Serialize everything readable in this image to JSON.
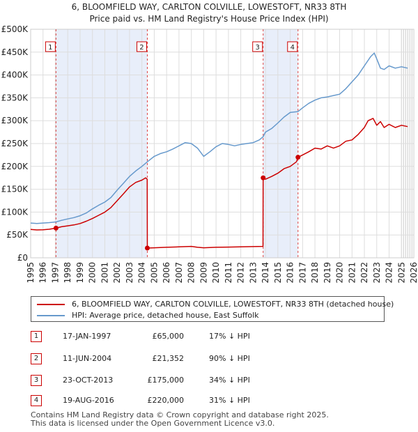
{
  "chart_data": {
    "type": "line",
    "title": "6, BLOOMFIELD WAY, CARLTON COLVILLE, LOWESTOFT, NR33 8TH",
    "subtitle": "Price paid vs. HM Land Registry's House Price Index (HPI)",
    "xlim": [
      1995,
      2026
    ],
    "ylim": [
      0,
      500000
    ],
    "x_ticks": [
      "1995",
      "1996",
      "1997",
      "1998",
      "1999",
      "2000",
      "2001",
      "2002",
      "2003",
      "2004",
      "2005",
      "2006",
      "2007",
      "2008",
      "2009",
      "2010",
      "2011",
      "2012",
      "2013",
      "2014",
      "2015",
      "2016",
      "2017",
      "2018",
      "2019",
      "2020",
      "2021",
      "2022",
      "2023",
      "2024",
      "2025",
      "2026"
    ],
    "y_ticks": [
      {
        "value": 0,
        "label": "£0"
      },
      {
        "value": 50000,
        "label": "£50K"
      },
      {
        "value": 100000,
        "label": "£100K"
      },
      {
        "value": 150000,
        "label": "£150K"
      },
      {
        "value": 200000,
        "label": "£200K"
      },
      {
        "value": 250000,
        "label": "£250K"
      },
      {
        "value": 300000,
        "label": "£300K"
      },
      {
        "value": 350000,
        "label": "£350K"
      },
      {
        "value": 400000,
        "label": "£400K"
      },
      {
        "value": 450000,
        "label": "£450K"
      },
      {
        "value": 500000,
        "label": "£500K"
      }
    ],
    "shaded_ranges": [
      [
        1997.05,
        2004.44
      ],
      [
        2013.81,
        2016.63
      ]
    ],
    "forecast_from": 2025.0,
    "series": [
      {
        "name": "6, BLOOMFIELD WAY, CARLTON COLVILLE, LOWESTOFT, NR33 8TH (detached house)",
        "color": "#cc0000",
        "x": [
          1995.0,
          1995.5,
          1996.0,
          1996.5,
          1997.05,
          1997.5,
          1998.0,
          1998.5,
          1999.0,
          1999.5,
          2000.0,
          2000.5,
          2001.0,
          2001.5,
          2002.0,
          2002.5,
          2003.0,
          2003.5,
          2004.0,
          2004.3,
          2004.43,
          2004.44,
          2005.0,
          2006.0,
          2007.0,
          2008.0,
          2008.5,
          2009.0,
          2010.0,
          2011.0,
          2012.0,
          2013.0,
          2013.8,
          2013.81,
          2014.0,
          2014.5,
          2015.0,
          2015.5,
          2016.0,
          2016.5,
          2016.63,
          2017.0,
          2017.5,
          2018.0,
          2018.5,
          2019.0,
          2019.5,
          2020.0,
          2020.5,
          2021.0,
          2021.5,
          2022.0,
          2022.3,
          2022.7,
          2023.0,
          2023.3,
          2023.6,
          2024.0,
          2024.5,
          2025.0,
          2025.5
        ],
        "y": [
          62000,
          61000,
          61500,
          62500,
          65000,
          68000,
          70000,
          72000,
          75000,
          80000,
          86000,
          93000,
          100000,
          110000,
          125000,
          140000,
          155000,
          165000,
          170000,
          175000,
          172000,
          21352,
          22000,
          23000,
          24000,
          25000,
          23000,
          22000,
          23000,
          23500,
          24000,
          24500,
          25000,
          175000,
          172000,
          178000,
          185000,
          195000,
          200000,
          210000,
          220000,
          225000,
          232000,
          240000,
          238000,
          245000,
          240000,
          245000,
          255000,
          258000,
          270000,
          285000,
          300000,
          305000,
          290000,
          298000,
          285000,
          292000,
          285000,
          290000,
          287000
        ]
      },
      {
        "name": "HPI: Average price, detached house, East Suffolk",
        "color": "#6699cc",
        "x": [
          1995.0,
          1995.5,
          1996.0,
          1996.5,
          1997.05,
          1997.5,
          1998.0,
          1998.5,
          1999.0,
          1999.5,
          2000.0,
          2000.5,
          2001.0,
          2001.5,
          2002.0,
          2002.5,
          2003.0,
          2003.5,
          2004.0,
          2004.44,
          2005.0,
          2005.5,
          2006.0,
          2006.5,
          2007.0,
          2007.5,
          2008.0,
          2008.5,
          2009.0,
          2009.5,
          2010.0,
          2010.5,
          2011.0,
          2011.5,
          2012.0,
          2012.5,
          2013.0,
          2013.5,
          2013.81,
          2014.0,
          2014.5,
          2015.0,
          2015.5,
          2016.0,
          2016.63,
          2017.0,
          2017.5,
          2018.0,
          2018.5,
          2019.0,
          2019.5,
          2020.0,
          2020.5,
          2021.0,
          2021.5,
          2022.0,
          2022.5,
          2022.8,
          2023.0,
          2023.3,
          2023.6,
          2024.0,
          2024.5,
          2025.0,
          2025.5
        ],
        "y": [
          76000,
          75000,
          76000,
          77000,
          78500,
          82000,
          85000,
          88000,
          92000,
          98000,
          107000,
          115000,
          122000,
          132000,
          148000,
          163000,
          178000,
          190000,
          200000,
          210000,
          222000,
          228000,
          232000,
          238000,
          245000,
          252000,
          250000,
          240000,
          222000,
          232000,
          243000,
          250000,
          248000,
          245000,
          248000,
          250000,
          252000,
          258000,
          265000,
          275000,
          283000,
          295000,
          308000,
          318000,
          320000,
          328000,
          338000,
          345000,
          350000,
          352000,
          355000,
          358000,
          370000,
          385000,
          400000,
          420000,
          440000,
          448000,
          435000,
          415000,
          412000,
          420000,
          415000,
          418000,
          415000
        ]
      }
    ],
    "markers": [
      {
        "n": "1",
        "x": 1997.05,
        "y": 65000
      },
      {
        "n": "2",
        "x": 2004.44,
        "y": 21352
      },
      {
        "n": "3",
        "x": 2013.81,
        "y": 175000
      },
      {
        "n": "4",
        "x": 2016.63,
        "y": 220000
      }
    ]
  },
  "legend": {
    "items": [
      {
        "label": "6, BLOOMFIELD WAY, CARLTON COLVILLE, LOWESTOFT, NR33 8TH (detached house)",
        "color": "#cc0000"
      },
      {
        "label": "HPI: Average price, detached house, East Suffolk",
        "color": "#6699cc"
      }
    ]
  },
  "sales": [
    {
      "n": "1",
      "date": "17-JAN-1997",
      "price": "£65,000",
      "hpi": "17% ↓ HPI"
    },
    {
      "n": "2",
      "date": "11-JUN-2004",
      "price": "£21,352",
      "hpi": "90% ↓ HPI"
    },
    {
      "n": "3",
      "date": "23-OCT-2013",
      "price": "£175,000",
      "hpi": "34% ↓ HPI"
    },
    {
      "n": "4",
      "date": "19-AUG-2016",
      "price": "£220,000",
      "hpi": "31% ↓ HPI"
    }
  ],
  "footer": {
    "line1": "Contains HM Land Registry data © Crown copyright and database right 2025.",
    "line2": "This data is licensed under the Open Government Licence v3.0."
  }
}
